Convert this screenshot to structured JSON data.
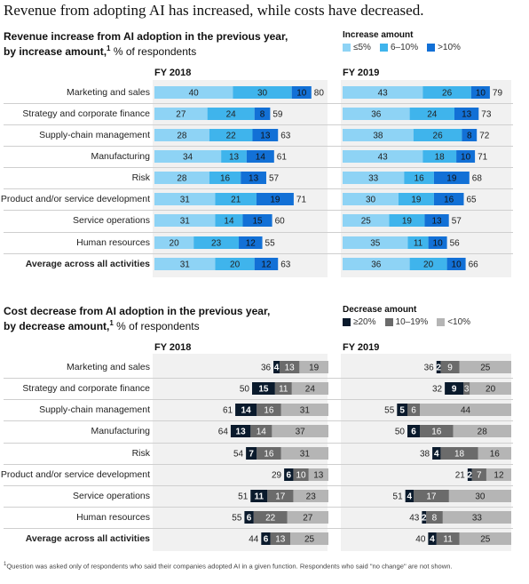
{
  "title": "Revenue from adopting AI has increased, while costs have decreased.",
  "revenue_section": {
    "title_line1": "Revenue increase from AI adoption in the previous year,",
    "title_line2": "by increase amount,",
    "footnote_mark": "1",
    "subtitle": " % of respondents",
    "legend_title": "Increase amount",
    "legend": [
      "≤5%",
      "6–10%",
      ">10%"
    ]
  },
  "cost_section": {
    "title_line1": "Cost decrease from AI adoption in the previous year,",
    "title_line2": "by decrease amount,",
    "footnote_mark": "1",
    "subtitle": " % of respondents",
    "legend_title": "Decrease amount",
    "legend": [
      "≥20%",
      "10–19%",
      "<10%"
    ]
  },
  "panel_titles": [
    "FY 2018",
    "FY 2019"
  ],
  "colors": {
    "rev": [
      "#8ed3f5",
      "#3fb4ec",
      "#1270d6"
    ],
    "cost": [
      "#0a1a2c",
      "#6b6b6b",
      "#b5b5b5"
    ],
    "panel_bg": "#f1f1f1"
  },
  "footnote": {
    "mark": "1",
    "text": "Question was asked only of respondents who said their companies adopted AI in a given function. Respondents who said \"no change\" are not shown."
  },
  "chart_data": [
    {
      "type": "bar",
      "stacked": true,
      "orientation": "horizontal",
      "title": "Revenue increase from AI adoption in the previous year, by increase amount, % of respondents — FY 2018",
      "categories": [
        "Marketing and sales",
        "Strategy and corporate finance",
        "Supply-chain management",
        "Manufacturing",
        "Risk",
        "Product and/or service development",
        "Service operations",
        "Human resources",
        "Average across all activities"
      ],
      "series": [
        {
          "name": "≤5%",
          "values": [
            40,
            27,
            28,
            34,
            28,
            31,
            31,
            20,
            31
          ]
        },
        {
          "name": "6–10%",
          "values": [
            30,
            24,
            22,
            13,
            16,
            21,
            14,
            23,
            20
          ]
        },
        {
          "name": ">10%",
          "values": [
            10,
            8,
            13,
            14,
            13,
            19,
            15,
            12,
            12
          ]
        }
      ],
      "totals": [
        80,
        59,
        63,
        61,
        57,
        71,
        60,
        55,
        63
      ]
    },
    {
      "type": "bar",
      "stacked": true,
      "orientation": "horizontal",
      "title": "Revenue increase from AI adoption in the previous year, by increase amount, % of respondents — FY 2019",
      "categories": [
        "Marketing and sales",
        "Strategy and corporate finance",
        "Supply-chain management",
        "Manufacturing",
        "Risk",
        "Product and/or service development",
        "Service operations",
        "Human resources",
        "Average across all activities"
      ],
      "series": [
        {
          "name": "≤5%",
          "values": [
            43,
            36,
            38,
            43,
            33,
            30,
            25,
            35,
            36
          ]
        },
        {
          "name": "6–10%",
          "values": [
            26,
            24,
            26,
            18,
            16,
            19,
            19,
            11,
            20
          ]
        },
        {
          "name": ">10%",
          "values": [
            10,
            13,
            8,
            10,
            19,
            16,
            13,
            10,
            10
          ]
        }
      ],
      "totals": [
        79,
        73,
        72,
        71,
        68,
        65,
        57,
        56,
        66
      ]
    },
    {
      "type": "bar",
      "stacked": true,
      "orientation": "horizontal",
      "title": "Cost decrease from AI adoption in the previous year, by decrease amount, % of respondents — FY 2018",
      "categories": [
        "Marketing and sales",
        "Strategy and corporate finance",
        "Supply-chain management",
        "Manufacturing",
        "Risk",
        "Product and/or service development",
        "Service operations",
        "Human resources",
        "Average across all activities"
      ],
      "series": [
        {
          "name": "≥20%",
          "values": [
            4,
            15,
            14,
            13,
            7,
            6,
            11,
            6,
            6
          ]
        },
        {
          "name": "10–19%",
          "values": [
            13,
            11,
            16,
            14,
            16,
            10,
            17,
            22,
            13
          ]
        },
        {
          "name": "<10%",
          "values": [
            19,
            24,
            31,
            37,
            31,
            13,
            23,
            27,
            25
          ]
        }
      ],
      "totals": [
        36,
        50,
        61,
        64,
        54,
        29,
        51,
        55,
        44
      ]
    },
    {
      "type": "bar",
      "stacked": true,
      "orientation": "horizontal",
      "title": "Cost decrease from AI adoption in the previous year, by decrease amount, % of respondents — FY 2019",
      "categories": [
        "Marketing and sales",
        "Strategy and corporate finance",
        "Supply-chain management",
        "Manufacturing",
        "Risk",
        "Product and/or service development",
        "Service operations",
        "Human resources",
        "Average across all activities"
      ],
      "series": [
        {
          "name": "≥20%",
          "values": [
            2,
            9,
            5,
            6,
            4,
            2,
            4,
            2,
            4
          ]
        },
        {
          "name": "10–19%",
          "values": [
            9,
            3,
            6,
            16,
            18,
            7,
            17,
            8,
            11
          ]
        },
        {
          "name": "<10%",
          "values": [
            25,
            20,
            44,
            28,
            16,
            12,
            30,
            33,
            25
          ]
        }
      ],
      "totals": [
        36,
        32,
        55,
        50,
        38,
        21,
        51,
        43,
        40
      ]
    }
  ]
}
